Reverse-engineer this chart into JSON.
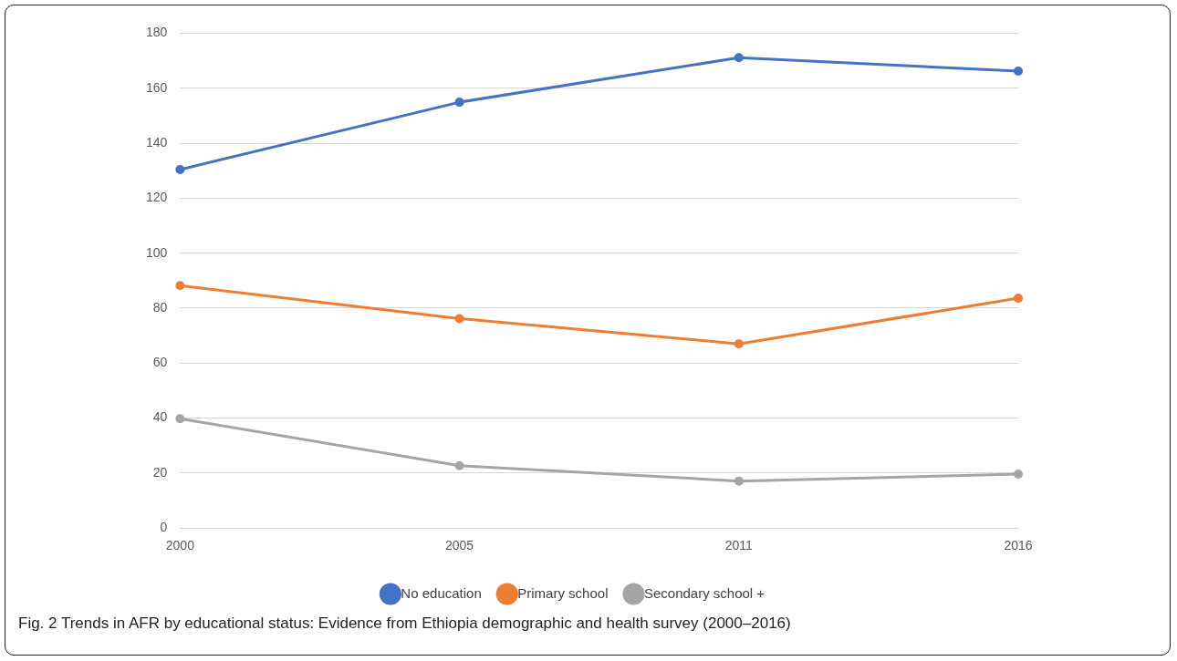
{
  "chart_data": {
    "type": "line",
    "categories": [
      "2000",
      "2005",
      "2011",
      "2016"
    ],
    "series": [
      {
        "name": "No education",
        "color": "#4472c4",
        "values": [
          130.4,
          154.9,
          171.1,
          166.2
        ]
      },
      {
        "name": "Primary school",
        "color": "#ed7d31",
        "values": [
          88.2,
          76.2,
          67.0,
          83.6
        ]
      },
      {
        "name": "Secondary school +",
        "color": "#a5a5a5",
        "values": [
          39.8,
          22.7,
          17.1,
          19.6
        ]
      }
    ],
    "ylim": [
      0,
      180
    ],
    "yticks": [
      0,
      20,
      40,
      60,
      80,
      100,
      120,
      140,
      160,
      180
    ],
    "grid": "y",
    "legend": "bottom",
    "marker": "circle",
    "line_style": "solid",
    "annotations": [
      "Fig. 2 Trends in AFR by educational status: Evidence from Ethiopia demographic and health survey (2000–2016)"
    ]
  }
}
